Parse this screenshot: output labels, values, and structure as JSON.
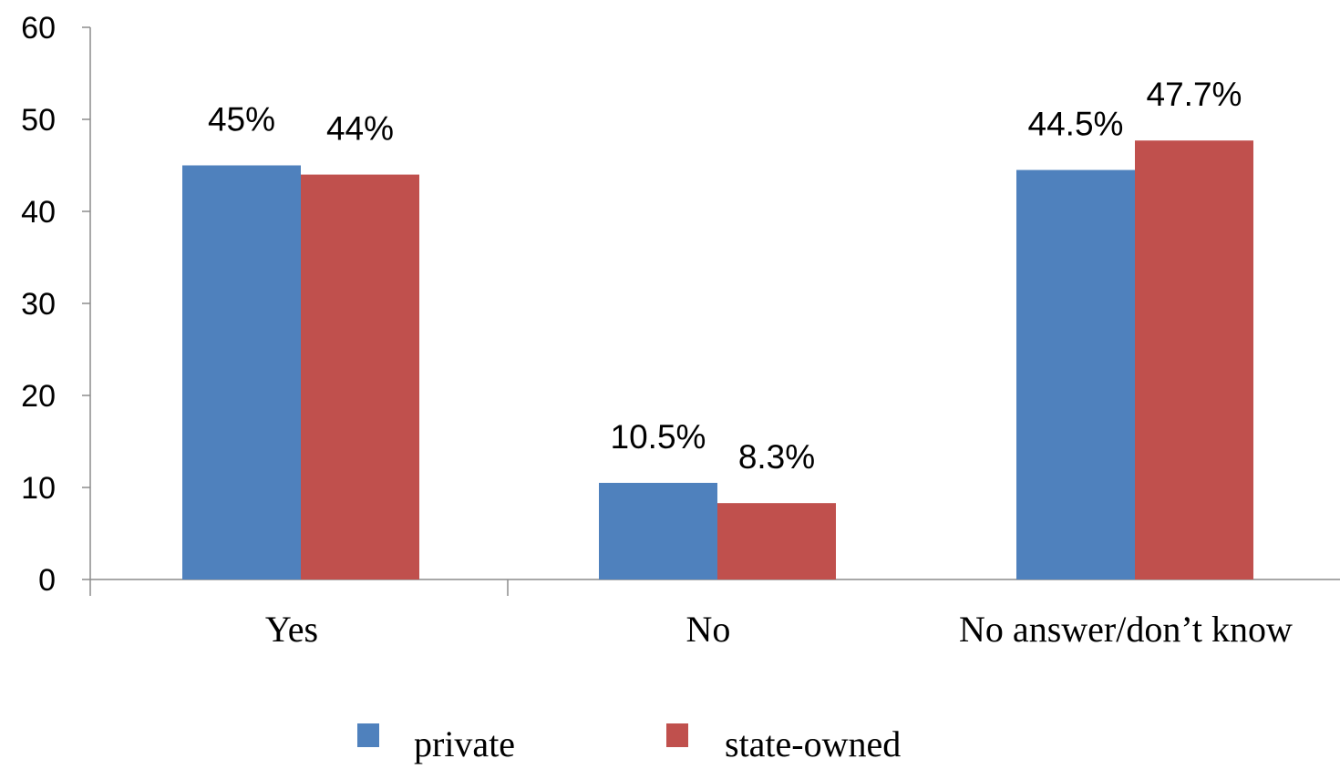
{
  "chart_data": {
    "type": "bar",
    "categories": [
      "Yes",
      "No",
      "No answer/don’t know"
    ],
    "series": [
      {
        "name": "private",
        "color": "#4f81bd",
        "values": [
          45,
          10.5,
          44.5
        ],
        "labels": [
          "45%",
          "10.5%",
          "44.5%"
        ]
      },
      {
        "name": "state-owned",
        "color": "#c0504d",
        "values": [
          44,
          8.3,
          47.7
        ],
        "labels": [
          "44%",
          "8.3%",
          "47.7%"
        ]
      }
    ],
    "y_ticks": [
      "0",
      "10",
      "20",
      "30",
      "40",
      "50",
      "60"
    ],
    "ylim": [
      0,
      60
    ],
    "grid": false,
    "legend_position": "bottom"
  }
}
